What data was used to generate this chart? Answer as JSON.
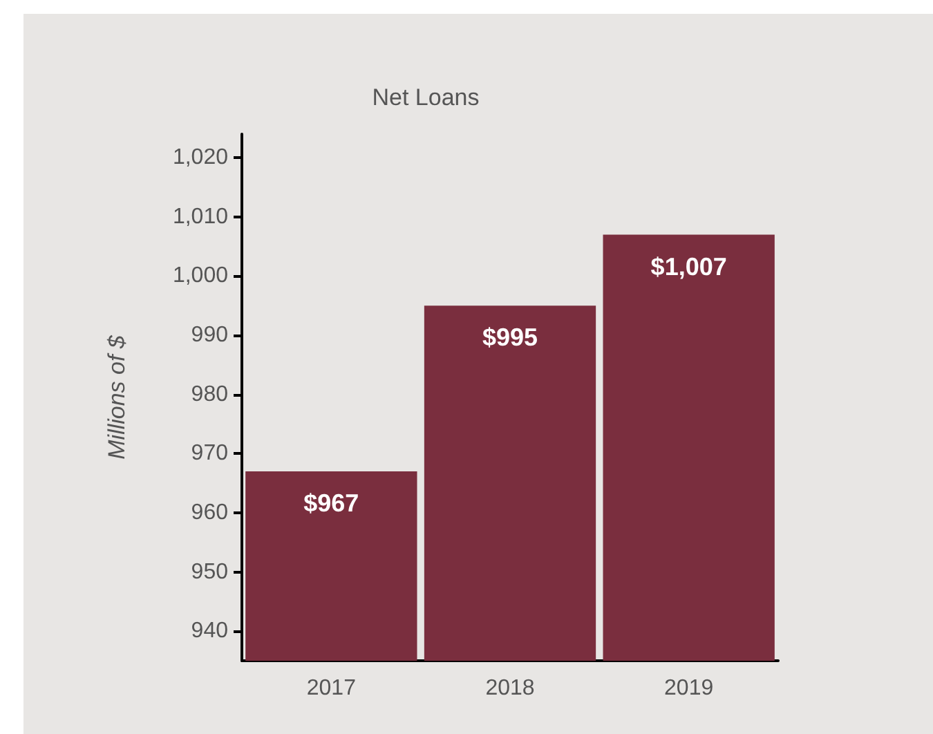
{
  "chart_data": {
    "type": "bar",
    "title": "Net Loans",
    "ylabel": "Millions of $",
    "categories": [
      "2017",
      "2018",
      "2019"
    ],
    "values": [
      967,
      995,
      1007
    ],
    "value_labels": [
      "$967",
      "$995",
      "$1,007"
    ],
    "color": "#7a2e3e",
    "ylim": [
      935,
      1024
    ],
    "yticks": [
      940,
      950,
      960,
      970,
      980,
      990,
      {
        "value": 1000,
        "label": "1,000"
      },
      {
        "value": 1010,
        "label": "1,010"
      },
      {
        "value": 1020,
        "label": "1,020"
      }
    ],
    "grid": false
  }
}
